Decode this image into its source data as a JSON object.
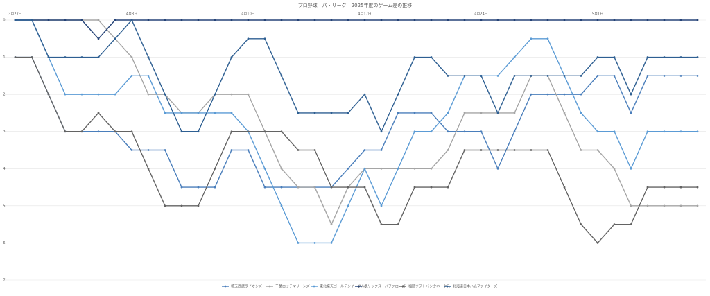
{
  "chart_data": {
    "type": "line",
    "title": "プロ野球　パ・リーグ　2025年度のゲーム差の推移",
    "categories": [
      "3月27日",
      null,
      null,
      null,
      null,
      null,
      null,
      "4月3日",
      null,
      null,
      null,
      null,
      null,
      null,
      "4月10日",
      null,
      null,
      null,
      null,
      null,
      null,
      "4月17日",
      null,
      null,
      null,
      null,
      null,
      null,
      "4月24日",
      null,
      null,
      null,
      null,
      null,
      null,
      "5月1日",
      null,
      null,
      null,
      null,
      null,
      null
    ],
    "ylim": [
      0,
      7
    ],
    "yticks": [
      0,
      1,
      2,
      3,
      4,
      5,
      6,
      7
    ],
    "y_inverted": true,
    "grid": true,
    "legend": "bottom",
    "series": [
      {
        "name": "埼玉西武ライオンズ",
        "color": "#4a7ebb",
        "values": [
          1,
          1,
          2,
          3,
          3,
          3,
          3,
          3.5,
          3.5,
          3.5,
          4.5,
          4.5,
          4.5,
          3.5,
          3.5,
          4.5,
          4.5,
          4.5,
          4.5,
          4.5,
          4,
          3.5,
          3.5,
          2.5,
          2.5,
          2.5,
          3,
          3,
          3,
          4,
          3,
          2,
          2,
          2,
          2,
          1.5,
          1.5,
          2.5,
          1.5,
          1.5,
          1.5,
          1.5
        ]
      },
      {
        "name": "千葉ロッテマリーンズ",
        "color": "#a5a5a5",
        "values": [
          0,
          0,
          0,
          0,
          0,
          0,
          0.5,
          1,
          2,
          2,
          2.5,
          2.5,
          2,
          2,
          2,
          3,
          4,
          4.5,
          4.5,
          5.5,
          4.5,
          4,
          4,
          4,
          4,
          4,
          3.5,
          2.5,
          2.5,
          2.5,
          2.5,
          1.5,
          1.5,
          2.5,
          3.5,
          3.5,
          4,
          5,
          5,
          5,
          5,
          5
        ]
      },
      {
        "name": "東北楽天ゴールデンイーグルス",
        "color": "#5b9bd5",
        "values": [
          0,
          0,
          1,
          2,
          2,
          2,
          2,
          1.5,
          1.5,
          2.5,
          2.5,
          2.5,
          2.5,
          2.5,
          3,
          4,
          5,
          6,
          6,
          6,
          5,
          4,
          5,
          4,
          3,
          3,
          2.5,
          1.5,
          1.5,
          1.5,
          1,
          0.5,
          0.5,
          1.5,
          2.5,
          3,
          3,
          4,
          3,
          3,
          3,
          3
        ]
      },
      {
        "name": "オリックス・バファローズ",
        "color": "#264478",
        "values": [
          0,
          0,
          0,
          0,
          0,
          0.5,
          0,
          0,
          0,
          0,
          0,
          0,
          0,
          0,
          0,
          0,
          0,
          0,
          0,
          0,
          0,
          0,
          0,
          0,
          0,
          0,
          0,
          0,
          0,
          0,
          0,
          0,
          0,
          0,
          0,
          0,
          0,
          0,
          0,
          0,
          0,
          0
        ]
      },
      {
        "name": "福岡ソフトバンクホークス",
        "color": "#636363",
        "values": [
          1,
          1,
          2,
          3,
          3,
          2.5,
          3,
          3,
          4,
          5,
          5,
          5,
          4,
          3,
          3,
          3,
          3,
          3.5,
          3.5,
          4.5,
          4.5,
          4.5,
          5.5,
          5.5,
          4.5,
          4.5,
          4.5,
          3.5,
          3.5,
          3.5,
          3.5,
          3.5,
          3.5,
          4.5,
          5.5,
          6,
          5.5,
          5.5,
          4.5,
          4.5,
          4.5,
          4.5
        ]
      },
      {
        "name": "北海道日本ハムファイターズ",
        "color": "#2e5f92",
        "values": [
          0,
          0,
          1,
          1,
          1,
          1,
          0.5,
          0,
          1,
          2,
          3,
          3,
          2,
          1,
          0.5,
          0.5,
          1.5,
          2.5,
          2.5,
          2.5,
          2.5,
          2,
          3,
          2,
          1,
          1,
          1.5,
          1.5,
          1.5,
          2.5,
          1.5,
          1.5,
          1.5,
          1.5,
          1.5,
          1,
          1,
          2,
          1,
          1,
          1,
          1
        ]
      }
    ]
  }
}
